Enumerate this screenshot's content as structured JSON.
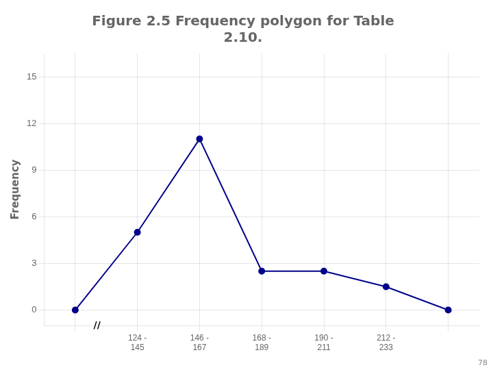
{
  "chart_data": {
    "type": "line",
    "title": [
      "Figure 2.5 Frequency polygon for Table",
      "2.10."
    ],
    "categories": [
      null,
      "124 -\n145",
      "146 -\n167",
      "168 -\n189",
      "190 -\n211",
      "212 -\n233",
      null
    ],
    "values": [
      0,
      5,
      11,
      2.5,
      2.5,
      1.5,
      0
    ],
    "color": "#00008B",
    "marker": "circle",
    "ylabel": "Frequency",
    "ylim": [
      -1.0,
      16.5
    ],
    "yticks": [
      0,
      3,
      6,
      9,
      12,
      15
    ],
    "grid": true,
    "annotations": [
      "//",
      "78"
    ]
  }
}
